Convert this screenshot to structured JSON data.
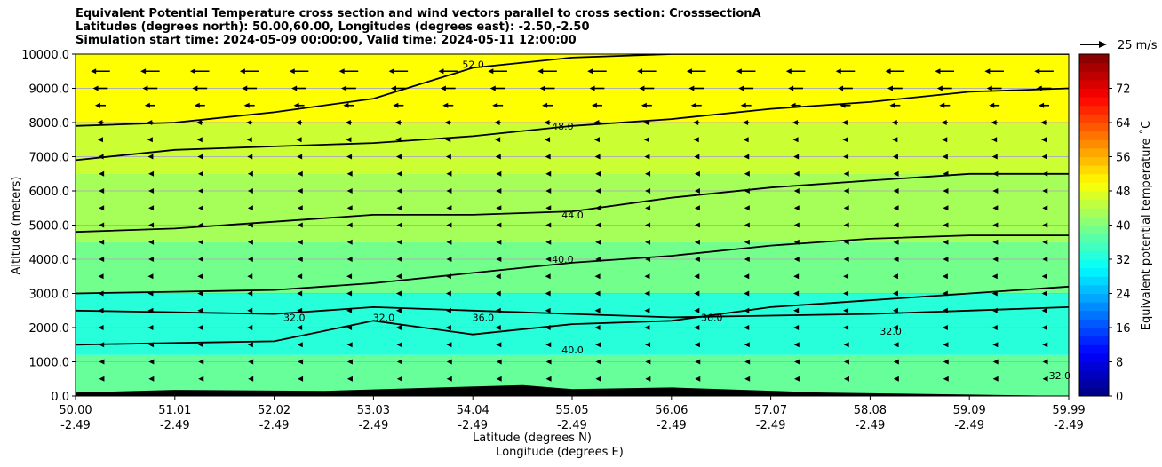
{
  "title_lines": [
    "Equivalent Potential Temperature cross section and wind vectors parallel to cross section: CrosssectionA",
    "Latitudes (degrees north): 50.00,60.00, Longitudes (degrees east): -2.50,-2.50",
    "Simulation start time: 2024-05-09 00:00:00, Valid time: 2024-05-11 12:00:00"
  ],
  "wind_key_label": "25 m/s",
  "chart_data": {
    "type": "heatmap",
    "ylabel": "Altitude (meters)",
    "xlabel_lines": [
      "Latitude (degrees N)",
      "Longitude (degrees E)"
    ],
    "colorbar_label": "Equivalent potential temperature ˚C",
    "ylim": [
      0,
      10000
    ],
    "xlim": [
      50.0,
      59.99
    ],
    "y_ticks": [
      {
        "value": 0,
        "label": "0.0"
      },
      {
        "value": 1000,
        "label": "1000.0"
      },
      {
        "value": 2000,
        "label": "2000.0"
      },
      {
        "value": 3000,
        "label": "3000.0"
      },
      {
        "value": 4000,
        "label": "4000.0"
      },
      {
        "value": 5000,
        "label": "5000.0"
      },
      {
        "value": 6000,
        "label": "6000.0"
      },
      {
        "value": 7000,
        "label": "7000.0"
      },
      {
        "value": 8000,
        "label": "8000.0"
      },
      {
        "value": 9000,
        "label": "9000.0"
      },
      {
        "value": 10000,
        "label": "10000.0"
      }
    ],
    "x_ticks": [
      {
        "lat": "50.00",
        "lon": "-2.49"
      },
      {
        "lat": "51.01",
        "lon": "-2.49"
      },
      {
        "lat": "52.02",
        "lon": "-2.49"
      },
      {
        "lat": "53.03",
        "lon": "-2.49"
      },
      {
        "lat": "54.04",
        "lon": "-2.49"
      },
      {
        "lat": "55.05",
        "lon": "-2.49"
      },
      {
        "lat": "56.06",
        "lon": "-2.49"
      },
      {
        "lat": "57.07",
        "lon": "-2.49"
      },
      {
        "lat": "58.08",
        "lon": "-2.49"
      },
      {
        "lat": "59.09",
        "lon": "-2.49"
      },
      {
        "lat": "59.99",
        "lon": "-2.49"
      }
    ],
    "colorbar_range": [
      0,
      80
    ],
    "colorbar_ticks": [
      "0",
      "8",
      "16",
      "24",
      "32",
      "40",
      "48",
      "56",
      "64",
      "72"
    ],
    "theta_e_bands": [
      {
        "from": 0,
        "to": 1200,
        "value": 38
      },
      {
        "from": 1200,
        "to": 3000,
        "value": 33
      },
      {
        "from": 3000,
        "to": 4500,
        "value": 39
      },
      {
        "from": 4500,
        "to": 6500,
        "value": 43
      },
      {
        "from": 6500,
        "to": 8000,
        "value": 46
      },
      {
        "from": 8000,
        "to": 10000,
        "value": 50
      }
    ],
    "contours": [
      {
        "level": 32.0,
        "heights": [
          2500,
          2450,
          2400,
          2600,
          2500,
          2400,
          2300,
          2350,
          2400,
          2500,
          2600
        ]
      },
      {
        "level": 36.0,
        "heights": [
          1500,
          1550,
          1600,
          2200,
          1800,
          2100,
          2200,
          2600,
          2800,
          3000,
          3200
        ]
      },
      {
        "level": 40.0,
        "heights": [
          3000,
          3050,
          3100,
          3300,
          3600,
          3900,
          4100,
          4400,
          4600,
          4700,
          4700
        ]
      },
      {
        "level": 44.0,
        "heights": [
          4800,
          4900,
          5100,
          5300,
          5300,
          5400,
          5800,
          6100,
          6300,
          6500,
          6500
        ]
      },
      {
        "level": 48.0,
        "heights": [
          6900,
          7200,
          7300,
          7400,
          7600,
          7900,
          8100,
          8400,
          8600,
          8900,
          9000
        ]
      },
      {
        "level": 52.0,
        "heights": [
          7900,
          8000,
          8300,
          8700,
          9600,
          9900,
          10000,
          10000,
          10000,
          10000,
          10000
        ]
      }
    ],
    "contour_labels": [
      {
        "text": "52.0",
        "lat": 54.0,
        "alt": 9700
      },
      {
        "text": "48.0",
        "lat": 54.9,
        "alt": 7900
      },
      {
        "text": "44.0",
        "lat": 55.0,
        "alt": 5300
      },
      {
        "text": "40.0",
        "lat": 54.9,
        "alt": 4000
      },
      {
        "text": "40.0",
        "lat": 55.0,
        "alt": 1350
      },
      {
        "text": "36.0",
        "lat": 54.1,
        "alt": 2300
      },
      {
        "text": "36.0",
        "lat": 56.4,
        "alt": 2300
      },
      {
        "text": "32.0",
        "lat": 52.2,
        "alt": 2300
      },
      {
        "text": "32.0",
        "lat": 53.1,
        "alt": 2300
      },
      {
        "text": "32.0",
        "lat": 58.2,
        "alt": 1900
      },
      {
        "text": "32.0",
        "lat": 59.9,
        "alt": 600
      }
    ],
    "terrain": [
      {
        "lat": 50.0,
        "alt": 100
      },
      {
        "lat": 51.0,
        "alt": 180
      },
      {
        "lat": 52.5,
        "alt": 150
      },
      {
        "lat": 54.5,
        "alt": 320
      },
      {
        "lat": 55.0,
        "alt": 200
      },
      {
        "lat": 56.0,
        "alt": 250
      },
      {
        "lat": 57.5,
        "alt": 100
      },
      {
        "lat": 59.99,
        "alt": 0
      }
    ],
    "wind_key_speed": 25,
    "wind_rows": [
      {
        "alt": 9500,
        "u": -18
      },
      {
        "alt": 9000,
        "u": -14
      },
      {
        "alt": 8500,
        "u": -10
      },
      {
        "alt": 8000,
        "u": -6
      },
      {
        "alt": 7500,
        "u": -5
      },
      {
        "alt": 7000,
        "u": -4
      },
      {
        "alt": 6500,
        "u": -3
      },
      {
        "alt": 6000,
        "u": -3
      },
      {
        "alt": 5500,
        "u": -3
      },
      {
        "alt": 5000,
        "u": -3
      },
      {
        "alt": 4500,
        "u": -3
      },
      {
        "alt": 4000,
        "u": -3
      },
      {
        "alt": 3500,
        "u": -4
      },
      {
        "alt": 3000,
        "u": -4
      },
      {
        "alt": 2500,
        "u": -4
      },
      {
        "alt": 2000,
        "u": -4
      },
      {
        "alt": 1500,
        "u": -3
      },
      {
        "alt": 1000,
        "u": -2
      },
      {
        "alt": 500,
        "u": -2
      }
    ]
  }
}
